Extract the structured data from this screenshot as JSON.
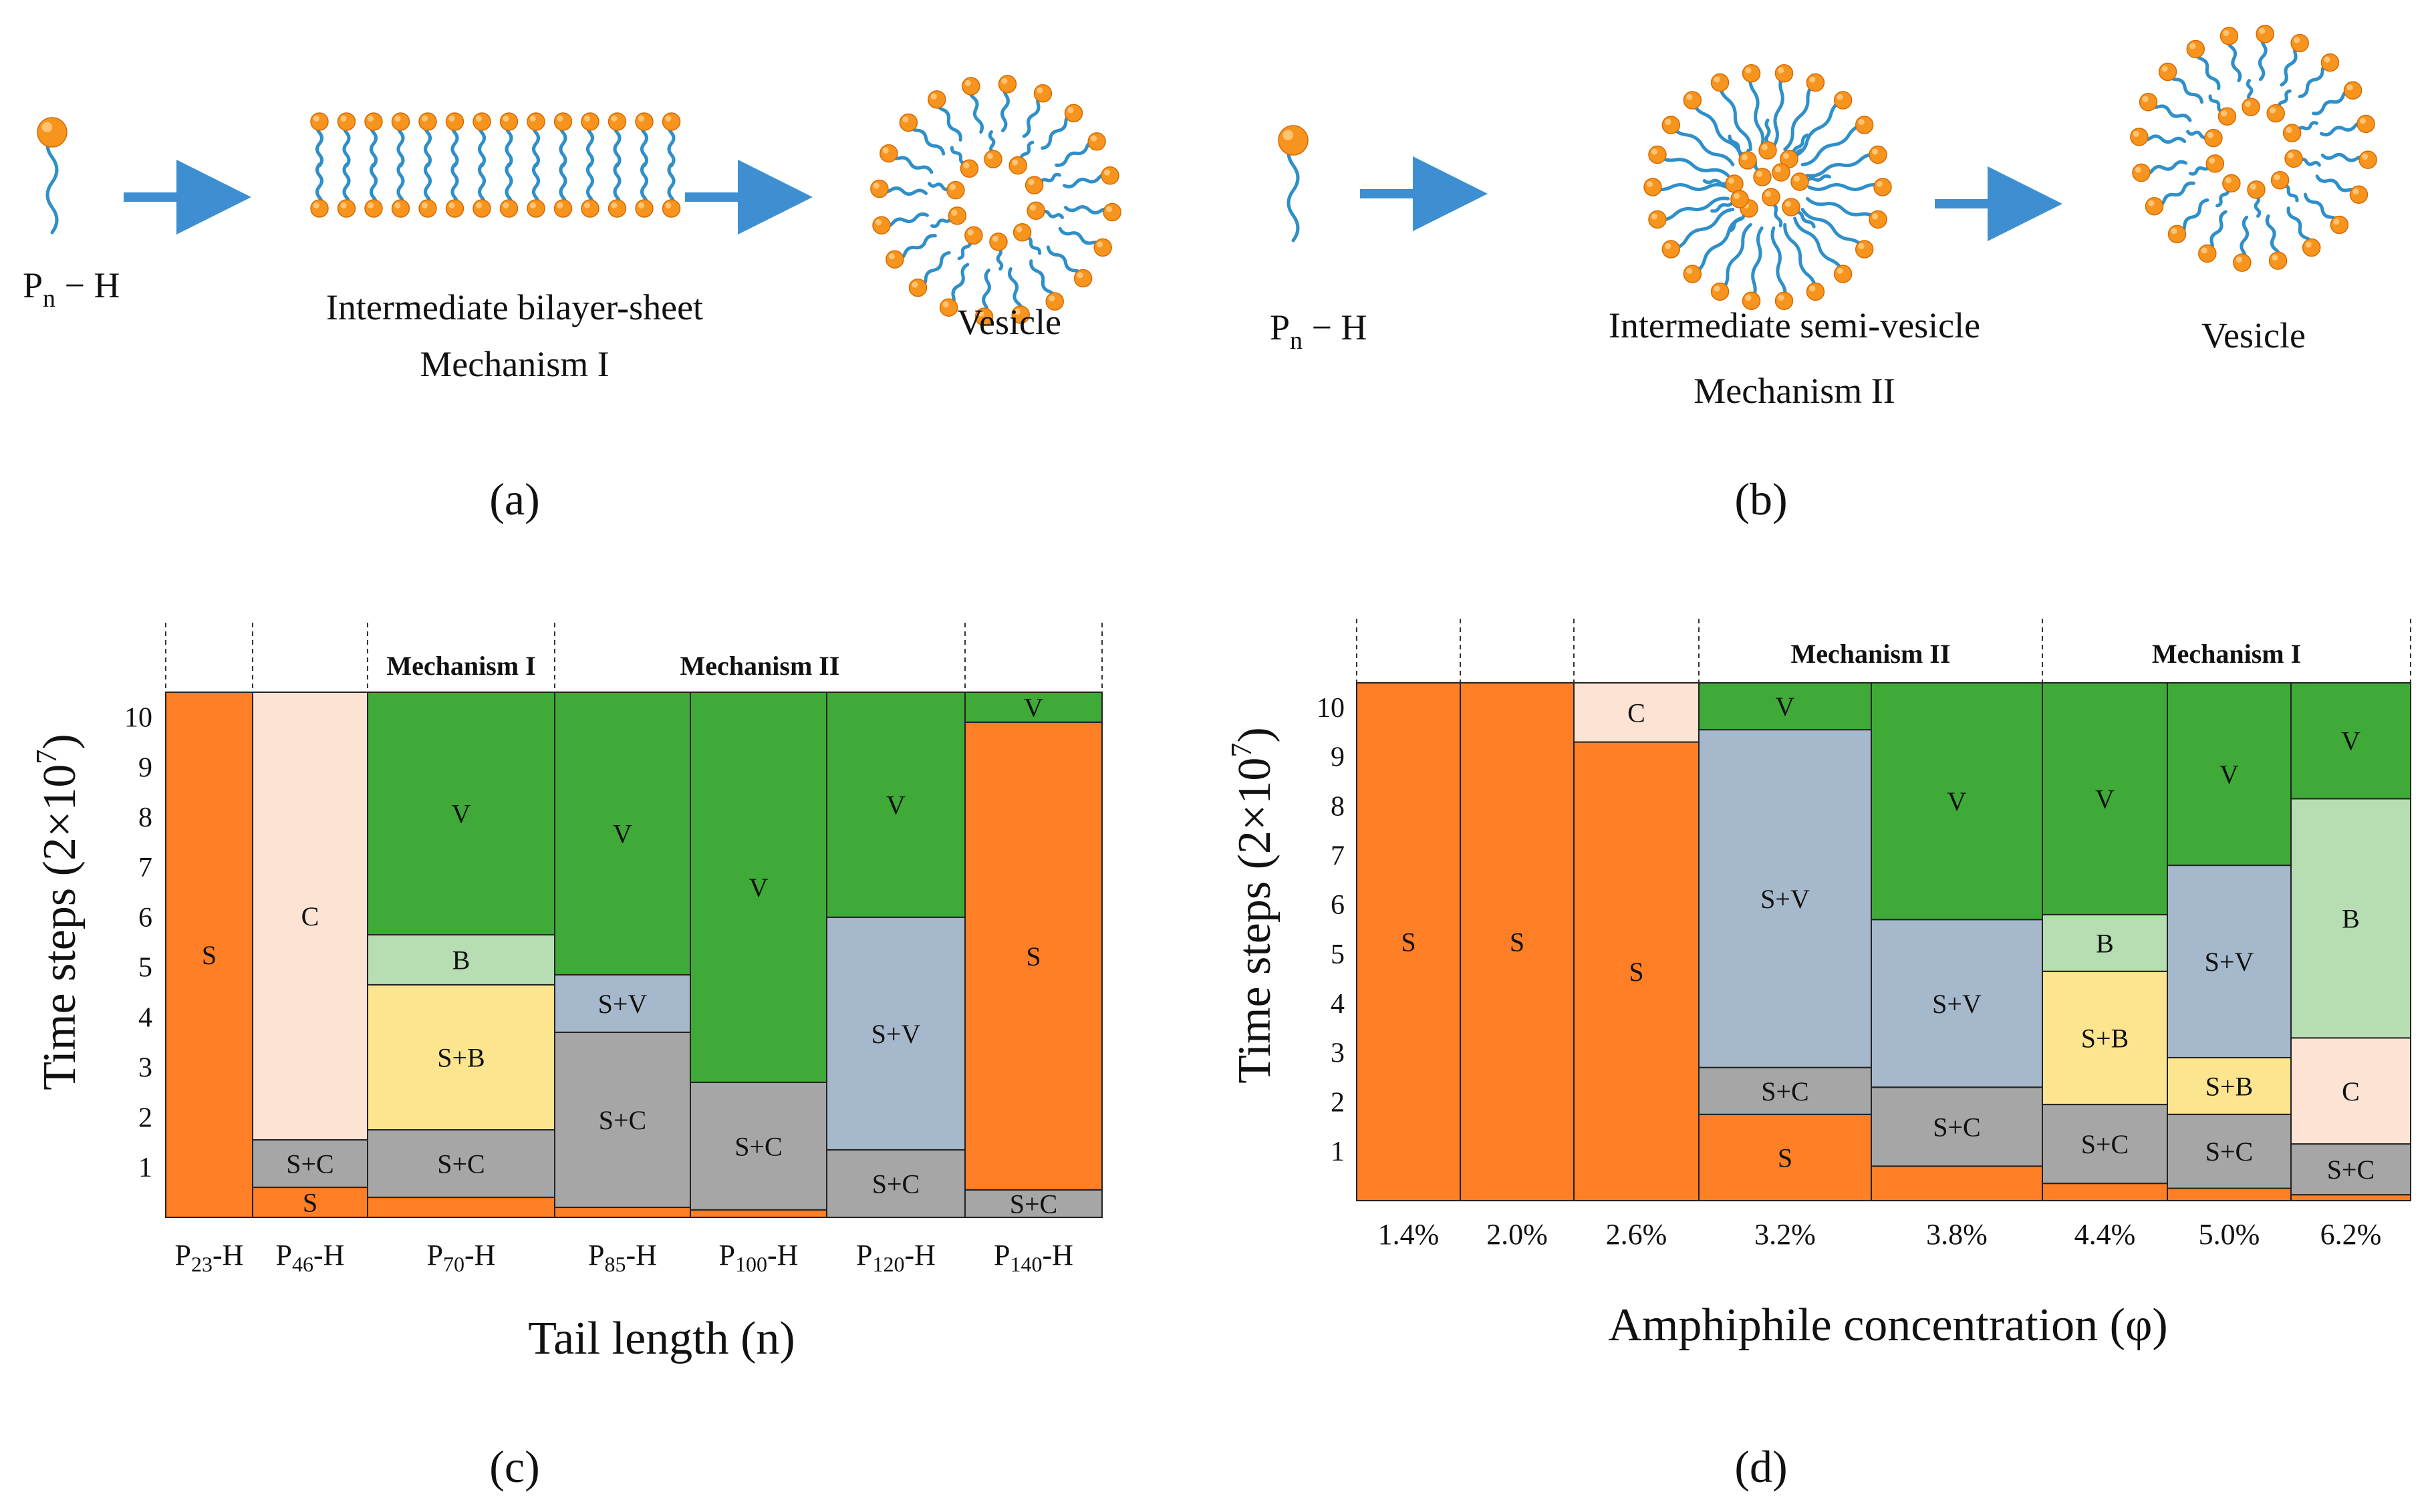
{
  "colors": {
    "S": "#FF7F27",
    "C": "#FDE3D3",
    "S+C": "#A6A6A6",
    "B": "#B7DDB2",
    "S+B": "#FDE48F",
    "V": "#3FAA37",
    "S+V": "#A6B8CB",
    "lipid_head": "#F7941D",
    "lipid_tail": "#2F8FC9",
    "arrow": "#3D8FD1"
  },
  "diagram": {
    "a": {
      "monomer_label_main": "P",
      "monomer_label_sub": "n",
      "monomer_label_tail": " − H",
      "intermediate_label": "Intermediate bilayer-sheet",
      "mechanism_label": "Mechanism I",
      "vesicle_label": "Vesicle",
      "panel_label": "(a)"
    },
    "b": {
      "monomer_label_main": "P",
      "monomer_label_sub": "n",
      "monomer_label_tail": " − H",
      "intermediate_label": "Intermediate semi-vesicle",
      "mechanism_label": "Mechanism II",
      "vesicle_label": "Vesicle",
      "panel_label": "(b)"
    }
  },
  "chart_data": [
    {
      "type": "stacked-bar",
      "panel_label": "(c)",
      "xlabel": "Tail length (n)",
      "ylabel": "Time steps (2×10⁷)",
      "ylim": [
        0,
        10.5
      ],
      "yticks": [
        1,
        2,
        3,
        4,
        5,
        6,
        7,
        8,
        9,
        10
      ],
      "categories": [
        {
          "label": "P23-H",
          "main": "P",
          "sub": "23",
          "tail": "-H"
        },
        {
          "label": "P46-H",
          "main": "P",
          "sub": "46",
          "tail": "-H"
        },
        {
          "label": "P70-H",
          "main": "P",
          "sub": "70",
          "tail": "-H"
        },
        {
          "label": "P85-H",
          "main": "P",
          "sub": "85",
          "tail": "-H"
        },
        {
          "label": "P100-H",
          "main": "P",
          "sub": "100",
          "tail": "-H"
        },
        {
          "label": "P120-H",
          "main": "P",
          "sub": "120",
          "tail": "-H"
        },
        {
          "label": "P140-H",
          "main": "P",
          "sub": "140",
          "tail": "-H"
        }
      ],
      "bars": [
        [
          {
            "phase": "S",
            "from": 0,
            "to": 10.5,
            "label": "S"
          }
        ],
        [
          {
            "phase": "S",
            "from": 0,
            "to": 0.6,
            "label": "S"
          },
          {
            "phase": "S+C",
            "from": 0.6,
            "to": 1.55,
            "label": "S+C"
          },
          {
            "phase": "C",
            "from": 1.55,
            "to": 10.5,
            "label": "C"
          }
        ],
        [
          {
            "phase": "S",
            "from": 0,
            "to": 0.4,
            "label": ""
          },
          {
            "phase": "S+C",
            "from": 0.4,
            "to": 1.75,
            "label": "S+C"
          },
          {
            "phase": "S+B",
            "from": 1.75,
            "to": 4.65,
            "label": "S+B"
          },
          {
            "phase": "B",
            "from": 4.65,
            "to": 5.65,
            "label": "B"
          },
          {
            "phase": "V",
            "from": 5.65,
            "to": 10.5,
            "label": "V"
          }
        ],
        [
          {
            "phase": "S",
            "from": 0,
            "to": 0.2,
            "label": ""
          },
          {
            "phase": "S+C",
            "from": 0.2,
            "to": 3.7,
            "label": "S+C"
          },
          {
            "phase": "S+V",
            "from": 3.7,
            "to": 4.85,
            "label": "S+V"
          },
          {
            "phase": "V",
            "from": 4.85,
            "to": 10.5,
            "label": "V"
          }
        ],
        [
          {
            "phase": "S",
            "from": 0,
            "to": 0.15,
            "label": ""
          },
          {
            "phase": "S+C",
            "from": 0.15,
            "to": 2.7,
            "label": "S+C"
          },
          {
            "phase": "V",
            "from": 2.7,
            "to": 10.5,
            "label": "V"
          }
        ],
        [
          {
            "phase": "S+C",
            "from": 0,
            "to": 1.35,
            "label": "S+C"
          },
          {
            "phase": "S+V",
            "from": 1.35,
            "to": 6.0,
            "label": "S+V"
          },
          {
            "phase": "V",
            "from": 6.0,
            "to": 10.5,
            "label": "V"
          }
        ],
        [
          {
            "phase": "S+C",
            "from": 0,
            "to": 0.55,
            "label": "S+C"
          },
          {
            "phase": "S",
            "from": 0.55,
            "to": 9.9,
            "label": "S"
          },
          {
            "phase": "V",
            "from": 9.9,
            "to": 10.5,
            "label": "V"
          }
        ]
      ],
      "mechanisms": [
        {
          "label": "Mechanism I",
          "from_index": 2,
          "to_index": 2
        },
        {
          "label": "Mechanism II",
          "from_index": 3,
          "to_index": 5
        }
      ]
    },
    {
      "type": "stacked-bar",
      "panel_label": "(d)",
      "xlabel": "Amphiphile concentration (φ)",
      "ylabel": "Time steps (2×10⁷)",
      "ylim": [
        0,
        10.5
      ],
      "yticks": [
        1,
        2,
        3,
        4,
        5,
        6,
        7,
        8,
        9,
        10
      ],
      "categories": [
        {
          "label": "1.4%"
        },
        {
          "label": "2.0%"
        },
        {
          "label": "2.6%"
        },
        {
          "label": "3.2%"
        },
        {
          "label": "3.8%"
        },
        {
          "label": "4.4%"
        },
        {
          "label": "5.0%"
        },
        {
          "label": "6.2%"
        }
      ],
      "bars": [
        [
          {
            "phase": "S",
            "from": 0,
            "to": 10.5,
            "label": "S"
          }
        ],
        [
          {
            "phase": "S",
            "from": 0,
            "to": 10.5,
            "label": "S"
          }
        ],
        [
          {
            "phase": "S",
            "from": 0,
            "to": 9.3,
            "label": "S"
          },
          {
            "phase": "C",
            "from": 9.3,
            "to": 10.5,
            "label": "C"
          }
        ],
        [
          {
            "phase": "S",
            "from": 0,
            "to": 1.75,
            "label": "S"
          },
          {
            "phase": "S+C",
            "from": 1.75,
            "to": 2.7,
            "label": "S+C"
          },
          {
            "phase": "S+V",
            "from": 2.7,
            "to": 9.55,
            "label": "S+V"
          },
          {
            "phase": "V",
            "from": 9.55,
            "to": 10.5,
            "label": "V"
          }
        ],
        [
          {
            "phase": "S",
            "from": 0,
            "to": 0.7,
            "label": ""
          },
          {
            "phase": "S+C",
            "from": 0.7,
            "to": 2.3,
            "label": "S+C"
          },
          {
            "phase": "S+V",
            "from": 2.3,
            "to": 5.7,
            "label": "S+V"
          },
          {
            "phase": "V",
            "from": 5.7,
            "to": 10.5,
            "label": "V"
          }
        ],
        [
          {
            "phase": "S",
            "from": 0,
            "to": 0.35,
            "label": ""
          },
          {
            "phase": "S+C",
            "from": 0.35,
            "to": 1.95,
            "label": "S+C"
          },
          {
            "phase": "S+B",
            "from": 1.95,
            "to": 4.65,
            "label": "S+B"
          },
          {
            "phase": "B",
            "from": 4.65,
            "to": 5.8,
            "label": "B"
          },
          {
            "phase": "V",
            "from": 5.8,
            "to": 10.5,
            "label": "V"
          }
        ],
        [
          {
            "phase": "S",
            "from": 0,
            "to": 0.25,
            "label": ""
          },
          {
            "phase": "S+C",
            "from": 0.25,
            "to": 1.75,
            "label": "S+C"
          },
          {
            "phase": "S+B",
            "from": 1.75,
            "to": 2.9,
            "label": "S+B"
          },
          {
            "phase": "S+V",
            "from": 2.9,
            "to": 6.8,
            "label": "S+V"
          },
          {
            "phase": "V",
            "from": 6.8,
            "to": 10.5,
            "label": "V"
          }
        ],
        [
          {
            "phase": "S",
            "from": 0,
            "to": 0.12,
            "label": ""
          },
          {
            "phase": "S+C",
            "from": 0.12,
            "to": 1.15,
            "label": "S+C"
          },
          {
            "phase": "C",
            "from": 1.15,
            "to": 3.3,
            "label": "C"
          },
          {
            "phase": "B",
            "from": 3.3,
            "to": 8.15,
            "label": "B"
          },
          {
            "phase": "V",
            "from": 8.15,
            "to": 10.5,
            "label": "V"
          }
        ]
      ],
      "mechanisms": [
        {
          "label": "Mechanism II",
          "from_index": 3,
          "to_index": 4
        },
        {
          "label": "Mechanism I",
          "from_index": 5,
          "to_index": 7
        }
      ]
    }
  ]
}
